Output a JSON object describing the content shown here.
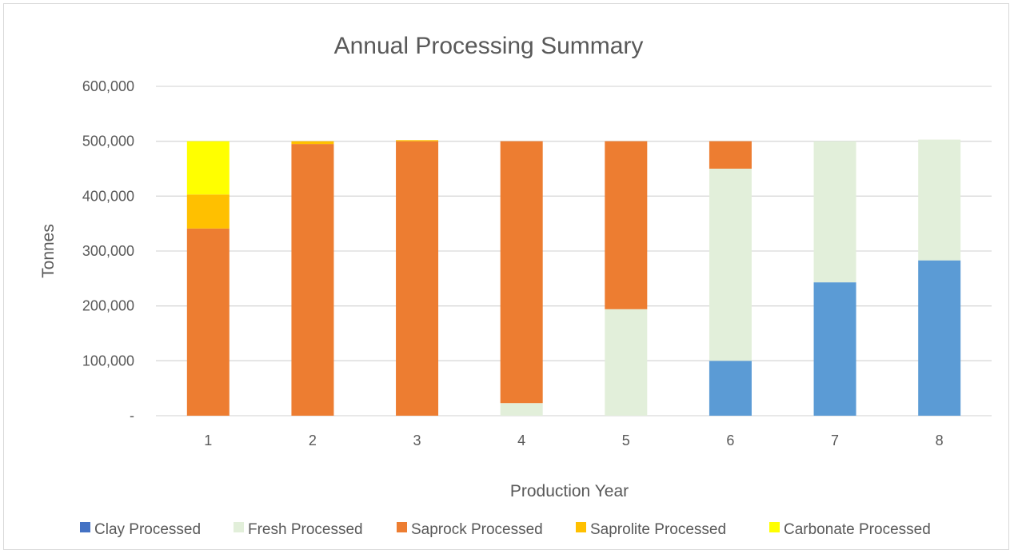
{
  "chart_data": {
    "type": "bar",
    "stacked": true,
    "title": "Annual Processing Summary",
    "xlabel": "Production Year",
    "ylabel": "Tonnes",
    "categories": [
      "1",
      "2",
      "3",
      "4",
      "5",
      "6",
      "7",
      "8"
    ],
    "ylim": [
      0,
      600000
    ],
    "yticks": [
      0,
      100000,
      200000,
      300000,
      400000,
      500000,
      600000
    ],
    "ytick_labels": [
      "-",
      "100,000",
      "200,000",
      "300,000",
      "400,000",
      "500,000",
      "600,000"
    ],
    "grid": true,
    "legend_position": "bottom",
    "series": [
      {
        "name": "Clay Processed",
        "color": "#5b9bd5",
        "legend_color": "#4472c4",
        "values": [
          0,
          0,
          0,
          0,
          0,
          100000,
          243000,
          283000
        ]
      },
      {
        "name": "Fresh Processed",
        "color": "#e2efda",
        "values": [
          0,
          0,
          0,
          23000,
          194000,
          350000,
          257000,
          220000
        ]
      },
      {
        "name": "Saprock Processed",
        "color": "#ed7d31",
        "values": [
          341000,
          495000,
          500000,
          477000,
          306000,
          50000,
          0,
          0
        ]
      },
      {
        "name": "Saprolite Processed",
        "color": "#ffc000",
        "values": [
          62000,
          5000,
          2000,
          0,
          0,
          0,
          0,
          0
        ]
      },
      {
        "name": "Carbonate Processed",
        "color": "#ffff00",
        "values": [
          97000,
          0,
          0,
          0,
          0,
          0,
          0,
          0
        ]
      }
    ]
  }
}
